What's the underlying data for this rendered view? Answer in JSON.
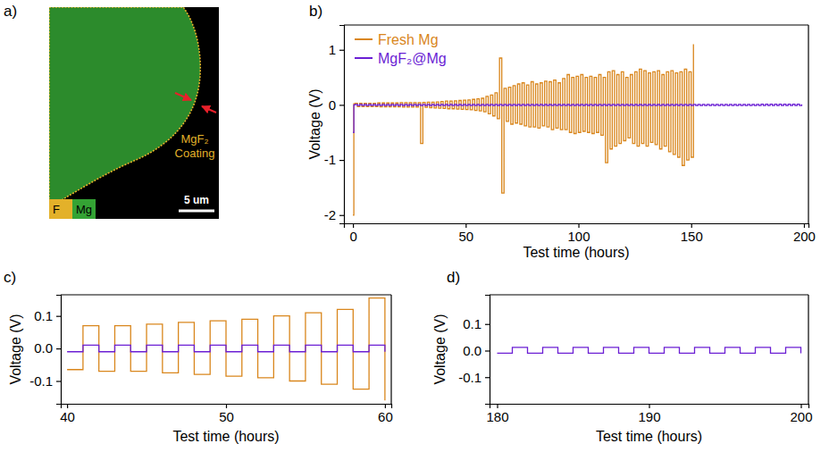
{
  "chart_data": [
    {
      "type": "image",
      "panel": "a)",
      "annotation": "MgF₂ Coating",
      "series": [
        {
          "name": "F",
          "color": "#e3b12a"
        },
        {
          "name": "Mg",
          "color": "#34a334"
        }
      ],
      "scale_bar": "5 um"
    },
    {
      "type": "line",
      "panel": "b)",
      "x_label": "Test time (hours)",
      "y_label": "Voltage (V)",
      "xlim": [
        -4,
        202
      ],
      "ylim": [
        -2.15,
        1.45
      ],
      "xticks": [
        0,
        50,
        100,
        150,
        200
      ],
      "yticks": [
        -2,
        -1,
        0,
        1
      ],
      "legend": "upper left",
      "x": [
        0,
        0.4,
        1,
        2,
        3,
        4,
        5,
        6,
        7,
        8,
        9,
        10,
        11,
        12,
        13,
        14,
        15,
        16,
        17,
        18,
        19,
        20,
        21,
        22,
        23,
        24,
        25,
        26,
        27,
        28,
        29,
        30,
        31,
        32,
        33,
        34,
        35,
        36,
        37,
        38,
        39,
        40,
        41,
        42,
        43,
        44,
        45,
        46,
        47,
        48,
        49,
        50,
        51,
        52,
        53,
        54,
        55,
        56,
        57,
        58,
        59,
        60,
        61,
        62,
        63,
        64,
        65,
        66,
        67,
        68,
        69,
        70,
        71,
        72,
        73,
        74,
        75,
        76,
        77,
        78,
        79,
        80,
        81,
        82,
        83,
        84,
        85,
        86,
        87,
        88,
        89,
        90,
        91,
        92,
        93,
        94,
        95,
        96,
        97,
        98,
        99,
        100,
        101,
        102,
        103,
        104,
        105,
        106,
        107,
        108,
        109,
        110,
        111,
        112,
        113,
        114,
        115,
        116,
        117,
        118,
        119,
        120,
        121,
        122,
        123,
        124,
        125,
        126,
        127,
        128,
        129,
        130,
        131,
        132,
        133,
        134,
        135,
        136,
        137,
        138,
        139,
        140,
        141,
        142,
        143,
        144,
        145,
        146,
        147,
        148,
        149,
        150,
        151,
        152,
        153,
        154,
        155,
        156,
        157,
        158,
        159,
        160,
        161,
        162,
        163,
        164,
        165,
        166,
        167,
        168,
        169,
        170,
        171,
        172,
        173,
        174,
        175,
        176,
        177,
        178,
        179,
        180,
        181,
        182,
        183,
        184,
        185,
        186,
        187,
        188,
        189,
        190,
        191,
        192,
        193,
        194,
        195,
        196,
        197,
        198,
        199
      ],
      "series": [
        {
          "name": "Fresh Mg",
          "color": "#d9861c",
          "values": [
            -2.0,
            0.02,
            0.03,
            -0.03,
            0.03,
            -0.03,
            0.03,
            -0.03,
            0.03,
            -0.03,
            0.03,
            -0.03,
            0.035,
            -0.035,
            0.035,
            -0.035,
            0.035,
            -0.035,
            0.035,
            -0.035,
            0.035,
            -0.035,
            0.04,
            -0.04,
            0.04,
            -0.04,
            0.04,
            -0.04,
            0.04,
            -0.04,
            0.04,
            -0.7,
            0.045,
            -0.045,
            0.05,
            -0.05,
            0.05,
            -0.055,
            0.055,
            -0.06,
            0.06,
            -0.065,
            0.07,
            -0.07,
            0.07,
            -0.07,
            0.075,
            -0.075,
            0.08,
            -0.08,
            0.085,
            -0.085,
            0.09,
            -0.09,
            0.1,
            -0.1,
            0.11,
            -0.11,
            0.12,
            -0.125,
            0.155,
            -0.16,
            0.18,
            -0.2,
            0.22,
            -0.25,
            0.85,
            -1.6,
            0.3,
            -0.3,
            0.32,
            -0.35,
            0.35,
            -0.33,
            0.38,
            -0.35,
            0.4,
            -0.38,
            0.36,
            -0.4,
            0.42,
            -0.4,
            0.38,
            -0.42,
            0.4,
            -0.38,
            0.43,
            -0.4,
            0.42,
            -0.45,
            0.45,
            -0.42,
            0.4,
            -0.45,
            0.48,
            -0.45,
            0.55,
            -0.5,
            0.5,
            -0.52,
            0.52,
            -0.5,
            0.55,
            -0.48,
            0.5,
            -0.5,
            0.52,
            -0.52,
            0.5,
            -0.5,
            0.55,
            -0.55,
            0.5,
            -1.05,
            0.6,
            -0.8,
            0.62,
            -0.75,
            0.55,
            -0.7,
            0.6,
            -0.65,
            0.5,
            -0.6,
            0.55,
            -0.7,
            0.6,
            -0.75,
            0.65,
            -0.7,
            0.62,
            -0.75,
            0.58,
            -0.68,
            0.6,
            -0.72,
            0.62,
            -0.8,
            0.55,
            -0.75,
            0.6,
            -0.85,
            0.62,
            -0.9,
            0.58,
            -0.95,
            0.6,
            -1.1,
            0.65,
            -1.0,
            0.6,
            -0.95,
            1.1,
            null,
            null,
            null,
            null,
            null,
            null,
            null,
            null,
            null,
            null,
            null,
            null,
            null,
            null,
            null,
            null,
            null,
            null,
            null,
            null,
            null,
            null,
            null,
            null,
            null,
            null,
            null,
            null,
            null,
            null,
            null,
            null,
            null,
            null,
            null,
            null,
            null,
            null,
            null,
            null,
            null,
            null,
            null,
            null,
            null,
            null,
            null,
            null
          ]
        },
        {
          "name": "MgF₂@Mg",
          "color": "#6b1fd4",
          "values": [
            -0.5,
            0.0,
            0.01,
            -0.01,
            0.01,
            -0.01,
            0.01,
            -0.01,
            0.01,
            -0.01,
            0.01,
            -0.01,
            0.01,
            -0.01,
            0.01,
            -0.01,
            0.01,
            -0.01,
            0.01,
            -0.01,
            0.01,
            -0.01,
            0.01,
            -0.01,
            0.01,
            -0.01,
            0.01,
            -0.01,
            0.01,
            -0.01,
            0.01,
            -0.01,
            0.01,
            -0.01,
            0.01,
            -0.01,
            0.01,
            -0.01,
            0.01,
            -0.01,
            0.01,
            -0.01,
            0.01,
            -0.01,
            0.01,
            -0.01,
            0.01,
            -0.01,
            0.01,
            -0.01,
            0.01,
            -0.01,
            0.01,
            -0.01,
            0.01,
            -0.01,
            0.01,
            -0.01,
            0.01,
            -0.01,
            0.01,
            -0.01,
            0.01,
            -0.01,
            0.01,
            -0.01,
            0.01,
            -0.01,
            0.01,
            -0.01,
            0.01,
            -0.01,
            0.01,
            -0.01,
            0.01,
            -0.01,
            0.01,
            -0.01,
            0.01,
            -0.01,
            0.01,
            -0.01,
            0.01,
            -0.01,
            0.01,
            -0.01,
            0.01,
            -0.01,
            0.01,
            -0.01,
            0.01,
            -0.01,
            0.01,
            -0.01,
            0.01,
            -0.01,
            0.01,
            -0.01,
            0.01,
            -0.01,
            0.01,
            -0.01,
            0.01,
            -0.01,
            0.01,
            -0.01,
            0.01,
            -0.01,
            0.01,
            -0.01,
            0.01,
            -0.01,
            0.01,
            -0.01,
            0.01,
            -0.01,
            0.01,
            -0.01,
            0.01,
            -0.01,
            0.01,
            -0.01,
            0.01,
            -0.01,
            0.01,
            -0.01,
            0.01,
            -0.01,
            0.01,
            -0.01,
            0.01,
            -0.01,
            0.01,
            -0.01,
            0.01,
            -0.01,
            0.01,
            -0.01,
            0.01,
            -0.01,
            0.01,
            -0.01,
            0.01,
            -0.01,
            0.01,
            -0.01,
            0.01,
            -0.01,
            0.01,
            -0.01,
            0.01,
            -0.01,
            0.01,
            -0.01,
            0.01,
            -0.01,
            0.01,
            -0.01,
            0.01,
            -0.01,
            0.01,
            -0.01,
            0.01,
            -0.01,
            0.01,
            -0.01,
            0.01,
            -0.01,
            0.01,
            -0.01,
            0.01,
            -0.01,
            0.01,
            -0.01,
            0.01,
            -0.01,
            0.01,
            -0.01,
            0.01,
            -0.01,
            0.01,
            -0.01,
            0.012,
            -0.01,
            0.012,
            -0.01,
            0.012,
            -0.01,
            0.012,
            -0.01,
            0.012,
            -0.01,
            0.012,
            -0.01,
            0.012,
            -0.01,
            0.012,
            -0.01,
            0.012,
            -0.01,
            0.012
          ]
        }
      ]
    },
    {
      "type": "line",
      "panel": "c)",
      "x_label": "Test time (hours)",
      "y_label": "Voltage (V)",
      "xlim": [
        39.6,
        60.4
      ],
      "ylim": [
        -0.17,
        0.165
      ],
      "xticks": [
        40,
        50,
        60
      ],
      "yticks": [
        -0.1,
        {
          "value": 0,
          "label": "0.0"
        },
        0.1
      ],
      "x": [
        40,
        41,
        42,
        43,
        44,
        45,
        46,
        47,
        48,
        49,
        50,
        51,
        52,
        53,
        54,
        55,
        56,
        57,
        58,
        59,
        60
      ],
      "series": [
        {
          "name": "Fresh Mg",
          "color": "#d9861c",
          "values": [
            -0.065,
            0.07,
            -0.07,
            0.07,
            -0.07,
            0.075,
            -0.075,
            0.08,
            -0.08,
            0.085,
            -0.085,
            0.09,
            -0.09,
            0.1,
            -0.1,
            0.11,
            -0.11,
            0.12,
            -0.125,
            0.155,
            -0.16
          ]
        },
        {
          "name": "MgF₂@Mg",
          "color": "#6b1fd4",
          "values": [
            -0.01,
            0.01,
            -0.01,
            0.01,
            -0.01,
            0.01,
            -0.01,
            0.01,
            -0.01,
            0.01,
            -0.01,
            0.01,
            -0.01,
            0.01,
            -0.01,
            0.01,
            -0.01,
            0.01,
            -0.01,
            0.01,
            -0.01
          ]
        }
      ]
    },
    {
      "type": "line",
      "panel": "d)",
      "x_label": "Test time (hours)",
      "y_label": "Voltage (V)",
      "xlim": [
        179.5,
        200.5
      ],
      "ylim": [
        -0.2,
        0.21
      ],
      "xticks": [
        180,
        190,
        200
      ],
      "yticks": [
        -0.1,
        {
          "value": 0,
          "label": "0.0"
        },
        0.1
      ],
      "x": [
        180,
        181,
        182,
        183,
        184,
        185,
        186,
        187,
        188,
        189,
        190,
        191,
        192,
        193,
        194,
        195,
        196,
        197,
        198,
        199,
        200
      ],
      "series": [
        {
          "name": "MgF₂@Mg",
          "color": "#6b1fd4",
          "values": [
            -0.01,
            0.012,
            -0.01,
            0.012,
            -0.01,
            0.012,
            -0.01,
            0.012,
            -0.01,
            0.012,
            -0.01,
            0.012,
            -0.01,
            0.012,
            -0.01,
            0.012,
            -0.01,
            0.012,
            -0.01,
            0.012,
            -0.01
          ]
        }
      ]
    }
  ]
}
